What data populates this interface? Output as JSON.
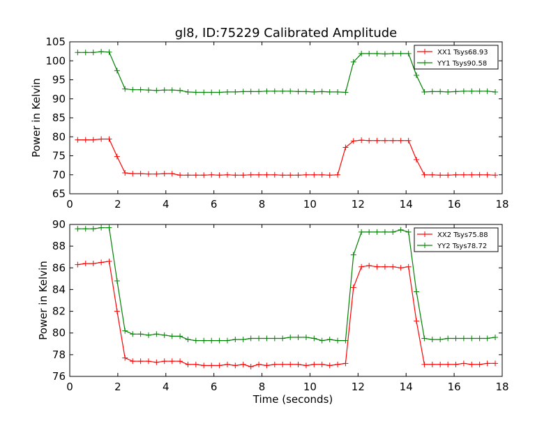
{
  "figure": {
    "title": "gl8, ID:75229 Calibrated Amplitude"
  },
  "chart_data": [
    {
      "type": "line",
      "ylabel": "Power in Kelvin",
      "xlabel": "",
      "xlim": [
        0,
        18
      ],
      "ylim": [
        65,
        105
      ],
      "xticks": [
        0,
        2,
        4,
        6,
        8,
        10,
        12,
        14,
        16,
        18
      ],
      "yticks": [
        65,
        70,
        75,
        80,
        85,
        90,
        95,
        100,
        105
      ],
      "legend_position": "top-right",
      "grid": false,
      "x": [
        0.33,
        0.66,
        0.98,
        1.31,
        1.64,
        1.97,
        2.3,
        2.62,
        2.95,
        3.28,
        3.61,
        3.94,
        4.26,
        4.59,
        4.92,
        5.25,
        5.58,
        5.9,
        6.23,
        6.56,
        6.89,
        7.22,
        7.54,
        7.87,
        8.2,
        8.53,
        8.86,
        9.18,
        9.51,
        9.84,
        10.17,
        10.5,
        10.82,
        11.15,
        11.48,
        11.81,
        12.14,
        12.46,
        12.79,
        13.12,
        13.45,
        13.78,
        14.1,
        14.43,
        14.76,
        15.09,
        15.42,
        15.74,
        16.07,
        16.4,
        16.73,
        17.06,
        17.38,
        17.71
      ],
      "series": [
        {
          "name": "XX1 Tsys68.93",
          "color": "#ff0000",
          "values": [
            79.2,
            79.2,
            79.2,
            79.4,
            79.4,
            74.8,
            70.5,
            70.3,
            70.3,
            70.2,
            70.2,
            70.3,
            70.3,
            69.9,
            69.9,
            69.9,
            69.9,
            70.0,
            69.9,
            70.0,
            69.9,
            69.9,
            70.0,
            70.0,
            70.0,
            70.0,
            69.9,
            69.9,
            69.9,
            70.0,
            70.0,
            70.0,
            69.9,
            70.0,
            77.2,
            78.9,
            79.1,
            79.0,
            79.0,
            79.0,
            79.0,
            79.0,
            79.0,
            74.0,
            70.0,
            70.0,
            69.9,
            69.9,
            70.0,
            70.0,
            70.0,
            70.0,
            70.0,
            69.9
          ]
        },
        {
          "name": "YY1 Tsys90.58",
          "color": "#008000",
          "values": [
            102.2,
            102.2,
            102.2,
            102.4,
            102.3,
            97.4,
            92.6,
            92.4,
            92.4,
            92.3,
            92.2,
            92.3,
            92.3,
            92.2,
            91.8,
            91.7,
            91.7,
            91.7,
            91.7,
            91.8,
            91.8,
            91.9,
            91.9,
            91.9,
            92.0,
            92.0,
            92.0,
            92.0,
            91.9,
            91.9,
            91.8,
            91.9,
            91.8,
            91.8,
            91.7,
            99.7,
            101.9,
            101.9,
            101.9,
            101.8,
            101.9,
            101.9,
            101.9,
            96.2,
            91.8,
            91.9,
            91.9,
            91.8,
            91.9,
            92.0,
            92.0,
            92.0,
            92.0,
            91.8
          ]
        }
      ]
    },
    {
      "type": "line",
      "ylabel": "Power in Kelvin",
      "xlabel": "Time (seconds)",
      "xlim": [
        0,
        18
      ],
      "ylim": [
        76,
        90
      ],
      "xticks": [
        0,
        2,
        4,
        6,
        8,
        10,
        12,
        14,
        16,
        18
      ],
      "yticks": [
        76,
        78,
        80,
        82,
        84,
        86,
        88,
        90
      ],
      "legend_position": "top-right",
      "grid": false,
      "x": [
        0.33,
        0.66,
        0.98,
        1.31,
        1.64,
        1.97,
        2.3,
        2.62,
        2.95,
        3.28,
        3.61,
        3.94,
        4.26,
        4.59,
        4.92,
        5.25,
        5.58,
        5.9,
        6.23,
        6.56,
        6.89,
        7.22,
        7.54,
        7.87,
        8.2,
        8.53,
        8.86,
        9.18,
        9.51,
        9.84,
        10.17,
        10.5,
        10.82,
        11.15,
        11.48,
        11.81,
        12.14,
        12.46,
        12.79,
        13.12,
        13.45,
        13.78,
        14.1,
        14.43,
        14.76,
        15.09,
        15.42,
        15.74,
        16.07,
        16.4,
        16.73,
        17.06,
        17.38,
        17.71
      ],
      "series": [
        {
          "name": "XX2 Tsys75.88",
          "color": "#ff0000",
          "values": [
            86.3,
            86.4,
            86.4,
            86.5,
            86.6,
            82.0,
            77.7,
            77.4,
            77.4,
            77.4,
            77.3,
            77.4,
            77.4,
            77.4,
            77.1,
            77.1,
            77.0,
            77.0,
            77.0,
            77.1,
            77.0,
            77.1,
            76.9,
            77.1,
            77.0,
            77.1,
            77.1,
            77.1,
            77.1,
            77.0,
            77.1,
            77.1,
            77.0,
            77.1,
            77.2,
            84.2,
            86.1,
            86.2,
            86.1,
            86.1,
            86.1,
            86.0,
            86.1,
            81.1,
            77.1,
            77.1,
            77.1,
            77.1,
            77.1,
            77.2,
            77.1,
            77.1,
            77.2,
            77.2
          ]
        },
        {
          "name": "YY2 Tsys78.72",
          "color": "#008000",
          "values": [
            89.6,
            89.6,
            89.6,
            89.7,
            89.7,
            84.8,
            80.2,
            79.9,
            79.9,
            79.8,
            79.9,
            79.8,
            79.7,
            79.7,
            79.4,
            79.3,
            79.3,
            79.3,
            79.3,
            79.3,
            79.4,
            79.4,
            79.5,
            79.5,
            79.5,
            79.5,
            79.5,
            79.6,
            79.6,
            79.6,
            79.5,
            79.3,
            79.4,
            79.3,
            79.3,
            87.2,
            89.3,
            89.3,
            89.3,
            89.3,
            89.3,
            89.5,
            89.3,
            83.8,
            79.5,
            79.4,
            79.4,
            79.5,
            79.5,
            79.5,
            79.5,
            79.5,
            79.5,
            79.6
          ]
        }
      ]
    }
  ]
}
